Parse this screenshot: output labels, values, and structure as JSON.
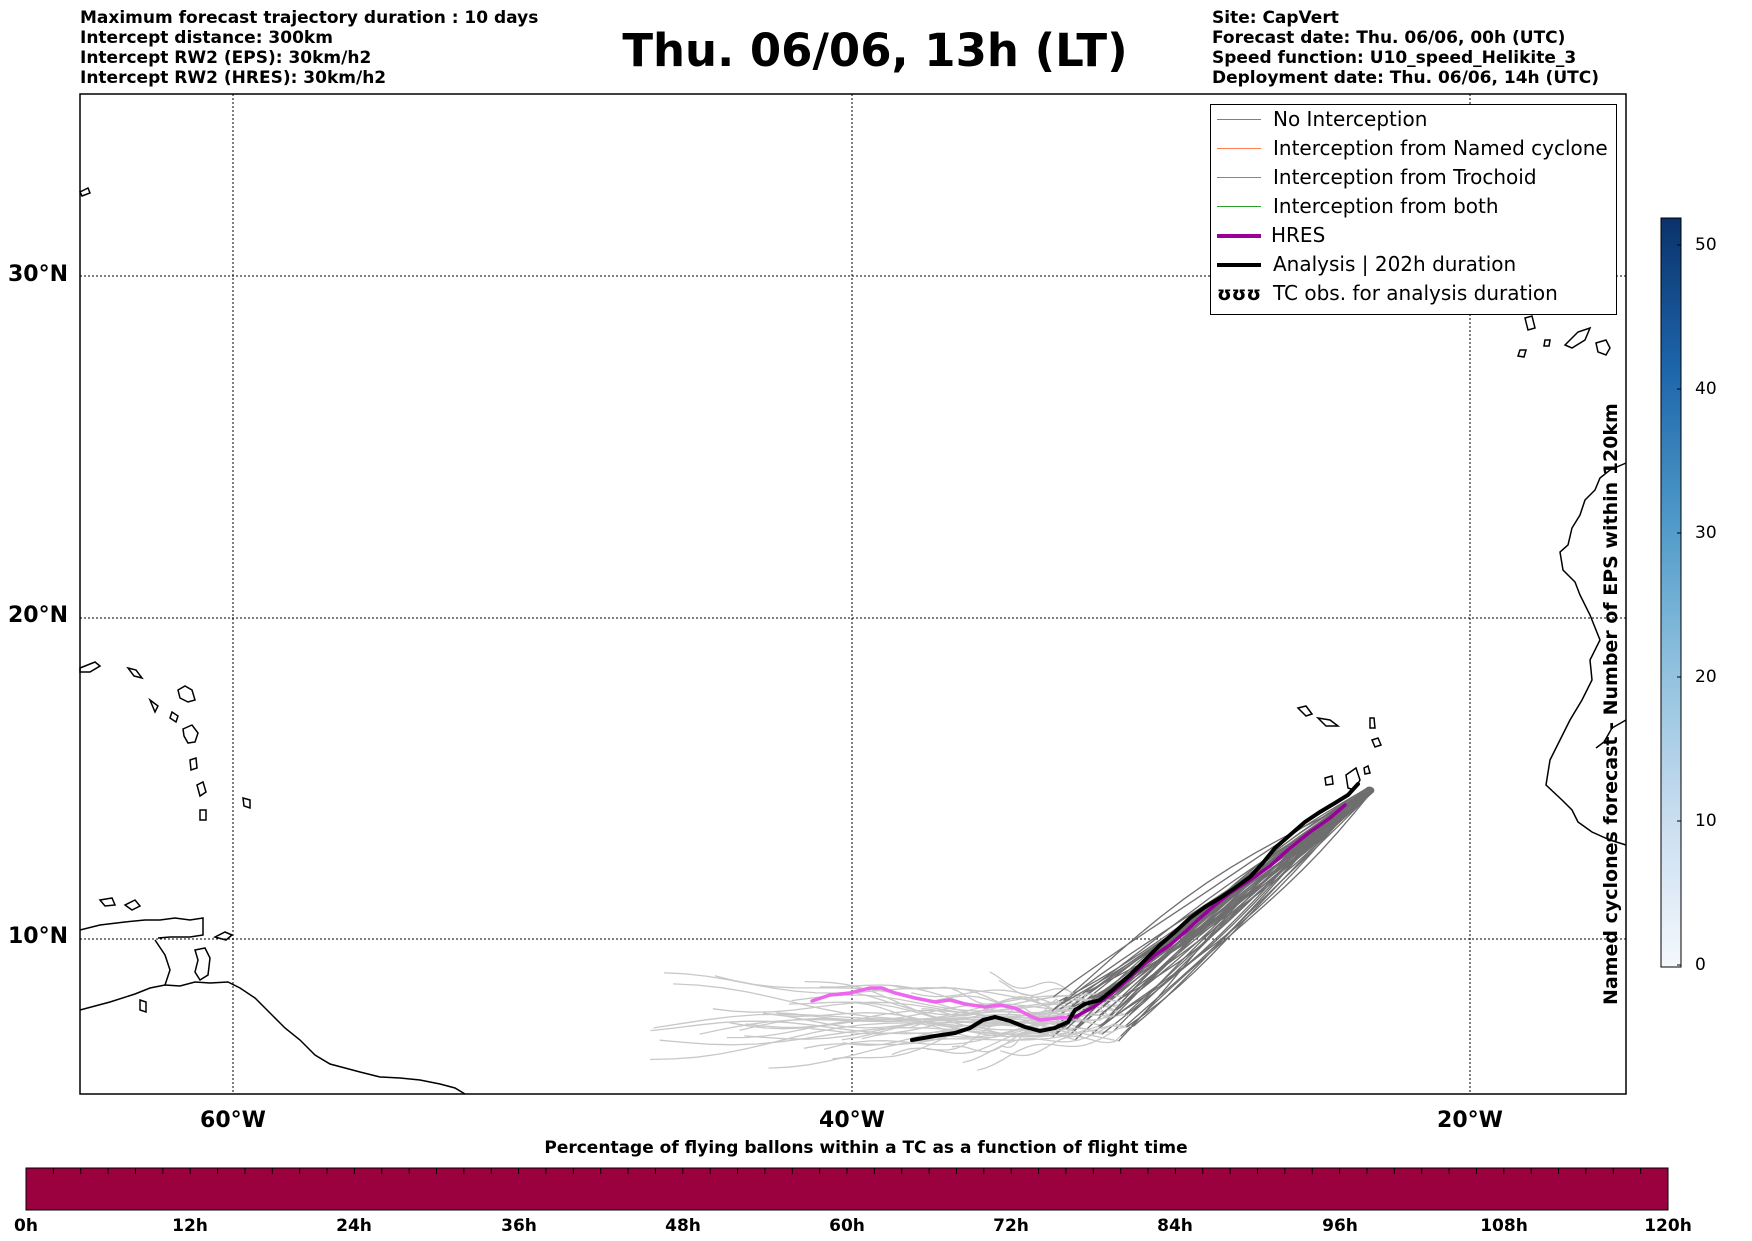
{
  "header": {
    "left_lines": [
      "Maximum forecast trajectory duration : 10 days",
      "Intercept distance: 300km",
      "Intercept RW2 (EPS):  30km/h2",
      "Intercept RW2 (HRES): 30km/h2"
    ],
    "title": "Thu. 06/06, 13h (LT)",
    "right_lines": [
      "Site: CapVert",
      "Forecast date: Thu. 06/06, 00h (UTC)",
      "Speed function: U10_speed_Helikite_3",
      "Deployment date: Thu. 06/06, 14h (UTC)"
    ]
  },
  "map": {
    "lat_labels": [
      "30°N",
      "20°N",
      "10°N"
    ],
    "lon_labels": [
      "60°W",
      "40°W",
      "20°W"
    ]
  },
  "legend": {
    "items": [
      {
        "label": "No Interception",
        "color": "#808080",
        "style": "thin"
      },
      {
        "label": "Interception from Named cyclone",
        "color": "#ff7f50",
        "style": "thin"
      },
      {
        "label": "Interception from Trochoid",
        "color": "#9b8b3c",
        "style": "thin"
      },
      {
        "label": "Interception from both",
        "color": "#2ca02c",
        "style": "thin"
      },
      {
        "label": "HRES",
        "color": "#990099",
        "style": "thick"
      },
      {
        "label": "Analysis | 202h duration",
        "color": "#000000",
        "style": "thick"
      },
      {
        "label": "TC obs. for analysis duration",
        "color": "#000000",
        "style": "symbol",
        "symbol": "ʊʊʊ"
      }
    ]
  },
  "colorbar": {
    "title": "Named cyclones forecast - Number of EPS within 120km",
    "ticks": [
      "50",
      "40",
      "30",
      "20",
      "10",
      "0"
    ]
  },
  "bottom_bar": {
    "title": "Percentage of flying ballons within a TC as a function of flight time",
    "color": "#9b003f",
    "ticks": [
      "0h",
      "12h",
      "24h",
      "36h",
      "48h",
      "60h",
      "72h",
      "84h",
      "96h",
      "108h",
      "120h"
    ]
  },
  "colors": {
    "hres_line_early": "#ee66ee",
    "hres_line_late": "#990099",
    "eps_light": "#c8c8c8",
    "eps_dark": "#6e6e6e",
    "analysis": "#000000"
  }
}
